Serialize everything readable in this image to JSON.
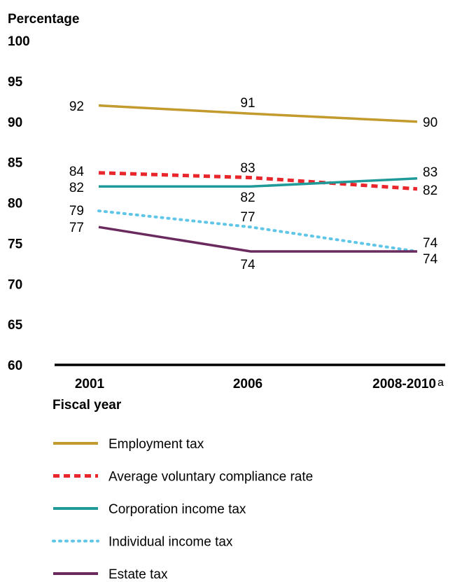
{
  "chart_data": {
    "type": "line",
    "ylabel": "Percentage",
    "xlabel": "Fiscal year",
    "ylim": [
      60,
      100
    ],
    "yticks": [
      60,
      65,
      70,
      75,
      80,
      85,
      90,
      95,
      100
    ],
    "categories": [
      "2001",
      "2006",
      "2008-2010"
    ],
    "category_note": {
      "index": 2,
      "text": "a"
    },
    "grid": false,
    "legend_position": "bottom",
    "series": [
      {
        "name": "Employment tax",
        "values": [
          92,
          91,
          90
        ],
        "color": "#C29A2E",
        "style": "solid",
        "labels": [
          "92",
          "91",
          "90"
        ]
      },
      {
        "name": "Average voluntary compliance rate",
        "values": [
          83.7,
          83.1,
          81.7
        ],
        "color": "#E8262B",
        "style": "dashed",
        "labels": [
          "84",
          "83",
          "82"
        ]
      },
      {
        "name": "Corporation income tax",
        "values": [
          82,
          82,
          83
        ],
        "color": "#1F9A98",
        "style": "solid",
        "labels": [
          "82",
          "82",
          "83"
        ]
      },
      {
        "name": "Individual income tax",
        "values": [
          79,
          77,
          74
        ],
        "color": "#5FC6E8",
        "style": "dotted",
        "labels": [
          "79",
          "77",
          "74"
        ]
      },
      {
        "name": "Estate tax",
        "values": [
          77,
          74,
          74
        ],
        "color": "#6B2A5E",
        "style": "solid",
        "labels": [
          "77",
          "74",
          "74"
        ]
      }
    ]
  }
}
